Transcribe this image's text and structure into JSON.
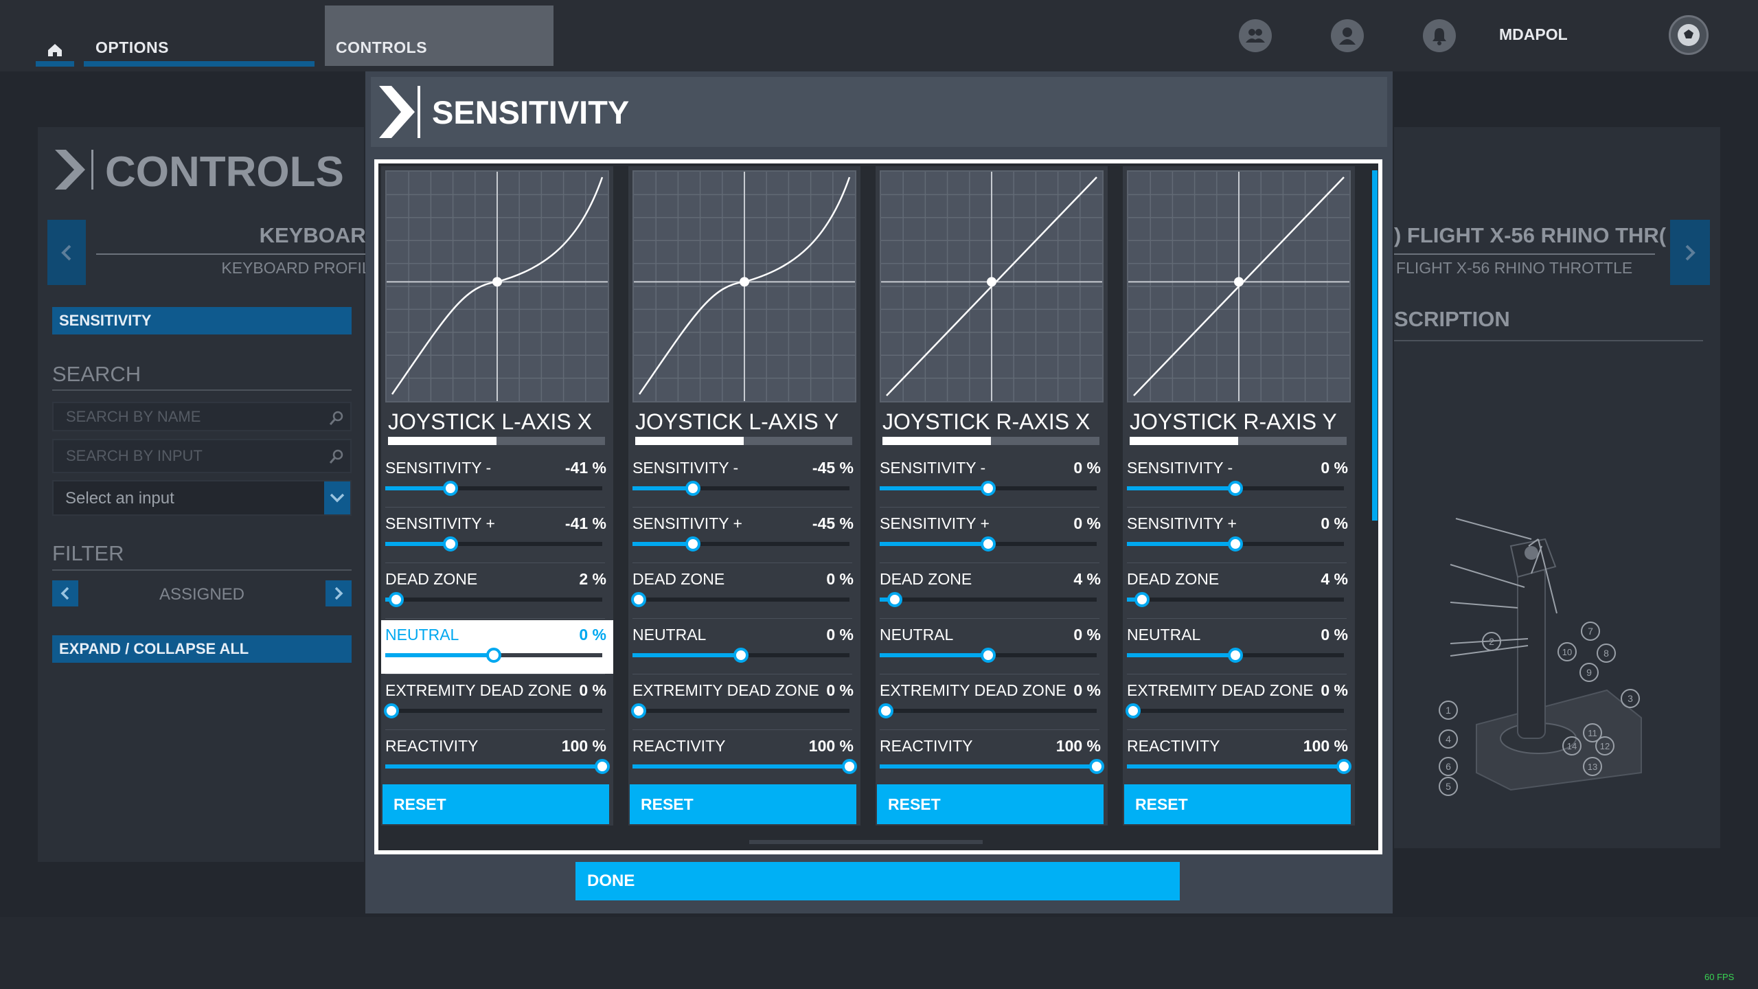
{
  "topbar": {
    "tabs": [
      {
        "label": "OPTIONS"
      },
      {
        "label": "CONTROLS"
      }
    ],
    "username": "MDAPOL"
  },
  "left_panel": {
    "title": "CONTROLS",
    "device_name": "KEYBOARD",
    "profile_name": "KEYBOARD PROFILE",
    "section_label": "SENSITIVITY",
    "search_heading": "SEARCH",
    "search_by_name_placeholder": "SEARCH BY NAME",
    "search_by_input_placeholder": "SEARCH BY INPUT",
    "select_input": "Select an input",
    "filter_heading": "FILTER",
    "filter_value": "ASSIGNED",
    "expand_collapse": "EXPAND / COLLAPSE ALL"
  },
  "right_panel": {
    "device_name": ") FLIGHT X-56 RHINO THR(",
    "profile_name": "FLIGHT X-56 RHINO THROTTLE",
    "section_label": "SCRIPTION",
    "callouts": [
      "1",
      "2",
      "3",
      "4",
      "5",
      "6",
      "7",
      "8",
      "9",
      "10",
      "11",
      "12",
      "13",
      "14"
    ]
  },
  "modal": {
    "title": "SENSITIVITY",
    "done_label": "DONE",
    "axes": [
      {
        "title": "JOYSTICK L-AXIS X",
        "curve": "s",
        "rows": [
          {
            "label": "SENSITIVITY -",
            "value": "-41 %",
            "level": 0.3
          },
          {
            "label": "SENSITIVITY +",
            "value": "-41 %",
            "level": 0.3
          },
          {
            "label": "DEAD ZONE",
            "value": "2 %",
            "level": 0.05
          },
          {
            "label": "NEUTRAL",
            "value": "0 %",
            "level": 0.5,
            "highlight": true
          },
          {
            "label": "EXTREMITY DEAD ZONE",
            "value": "0 %",
            "level": 0.03
          },
          {
            "label": "REACTIVITY",
            "value": "100 %",
            "level": 1.0
          }
        ],
        "reset_label": "RESET"
      },
      {
        "title": "JOYSTICK L-AXIS Y",
        "curve": "s",
        "rows": [
          {
            "label": "SENSITIVITY -",
            "value": "-45 %",
            "level": 0.28
          },
          {
            "label": "SENSITIVITY +",
            "value": "-45 %",
            "level": 0.28
          },
          {
            "label": "DEAD ZONE",
            "value": "0 %",
            "level": 0.03
          },
          {
            "label": "NEUTRAL",
            "value": "0 %",
            "level": 0.5
          },
          {
            "label": "EXTREMITY DEAD ZONE",
            "value": "0 %",
            "level": 0.03
          },
          {
            "label": "REACTIVITY",
            "value": "100 %",
            "level": 1.0
          }
        ],
        "reset_label": "RESET"
      },
      {
        "title": "JOYSTICK R-AXIS X",
        "curve": "linear",
        "rows": [
          {
            "label": "SENSITIVITY -",
            "value": "0 %",
            "level": 0.5
          },
          {
            "label": "SENSITIVITY +",
            "value": "0 %",
            "level": 0.5
          },
          {
            "label": "DEAD ZONE",
            "value": "4 %",
            "level": 0.07
          },
          {
            "label": "NEUTRAL",
            "value": "0 %",
            "level": 0.5
          },
          {
            "label": "EXTREMITY DEAD ZONE",
            "value": "0 %",
            "level": 0.03
          },
          {
            "label": "REACTIVITY",
            "value": "100 %",
            "level": 1.0
          }
        ],
        "reset_label": "RESET"
      },
      {
        "title": "JOYSTICK R-AXIS Y",
        "curve": "linear",
        "rows": [
          {
            "label": "SENSITIVITY -",
            "value": "0 %",
            "level": 0.5
          },
          {
            "label": "SENSITIVITY +",
            "value": "0 %",
            "level": 0.5
          },
          {
            "label": "DEAD ZONE",
            "value": "4 %",
            "level": 0.07
          },
          {
            "label": "NEUTRAL",
            "value": "0 %",
            "level": 0.5
          },
          {
            "label": "EXTREMITY DEAD ZONE",
            "value": "0 %",
            "level": 0.03
          },
          {
            "label": "REACTIVITY",
            "value": "100 %",
            "level": 1.0
          }
        ],
        "reset_label": "RESET"
      }
    ]
  },
  "status": {
    "fps": "60 FPS"
  },
  "colors": {
    "accent": "#00b0f5",
    "accent_dark": "#0f5a8e",
    "panel": "#3e4652",
    "card": "#353a42"
  }
}
